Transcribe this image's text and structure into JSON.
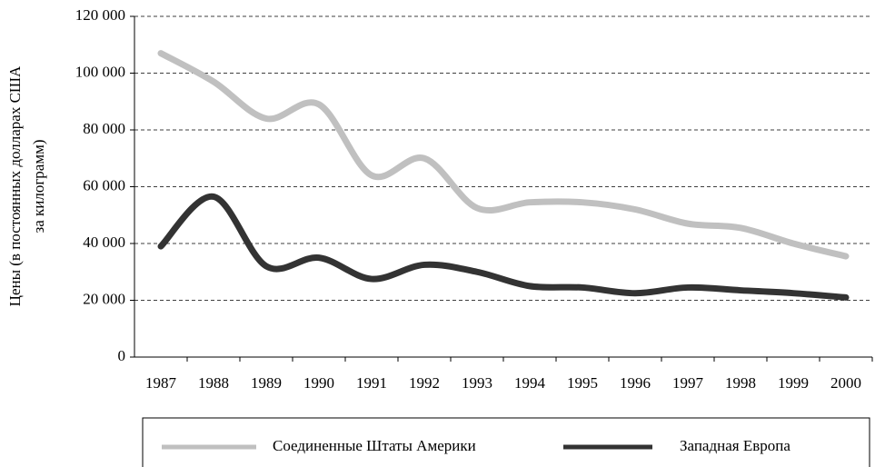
{
  "chart_data": {
    "type": "line",
    "y_label": [
      "Цены (в постоянных долларах США",
      "за килограмм)"
    ],
    "categories": [
      "1987",
      "1988",
      "1989",
      "1990",
      "1991",
      "1992",
      "1993",
      "1994",
      "1995",
      "1996",
      "1997",
      "1998",
      "1999",
      "2000"
    ],
    "series": [
      {
        "name": "Соединенные Штаты Америки",
        "color": "#c0c0c0",
        "values": [
          107000,
          97000,
          84000,
          89000,
          64000,
          70000,
          52500,
          54500,
          54500,
          52000,
          47000,
          45500,
          40000,
          35500
        ]
      },
      {
        "name": "Западная Европа",
        "color": "#333333",
        "values": [
          39000,
          56500,
          32000,
          35000,
          27500,
          32500,
          30000,
          25000,
          24500,
          22500,
          24500,
          23500,
          22500,
          21000
        ]
      }
    ],
    "ylim": [
      0,
      120000
    ],
    "yticks": [
      {
        "value": 0,
        "label": "0"
      },
      {
        "value": 20000,
        "label": "20 000"
      },
      {
        "value": 40000,
        "label": "40 000"
      },
      {
        "value": 60000,
        "label": "60 000"
      },
      {
        "value": 80000,
        "label": "80 000"
      },
      {
        "value": 100000,
        "label": "100 000"
      },
      {
        "value": 120000,
        "label": "120 000"
      }
    ],
    "grid": true
  }
}
